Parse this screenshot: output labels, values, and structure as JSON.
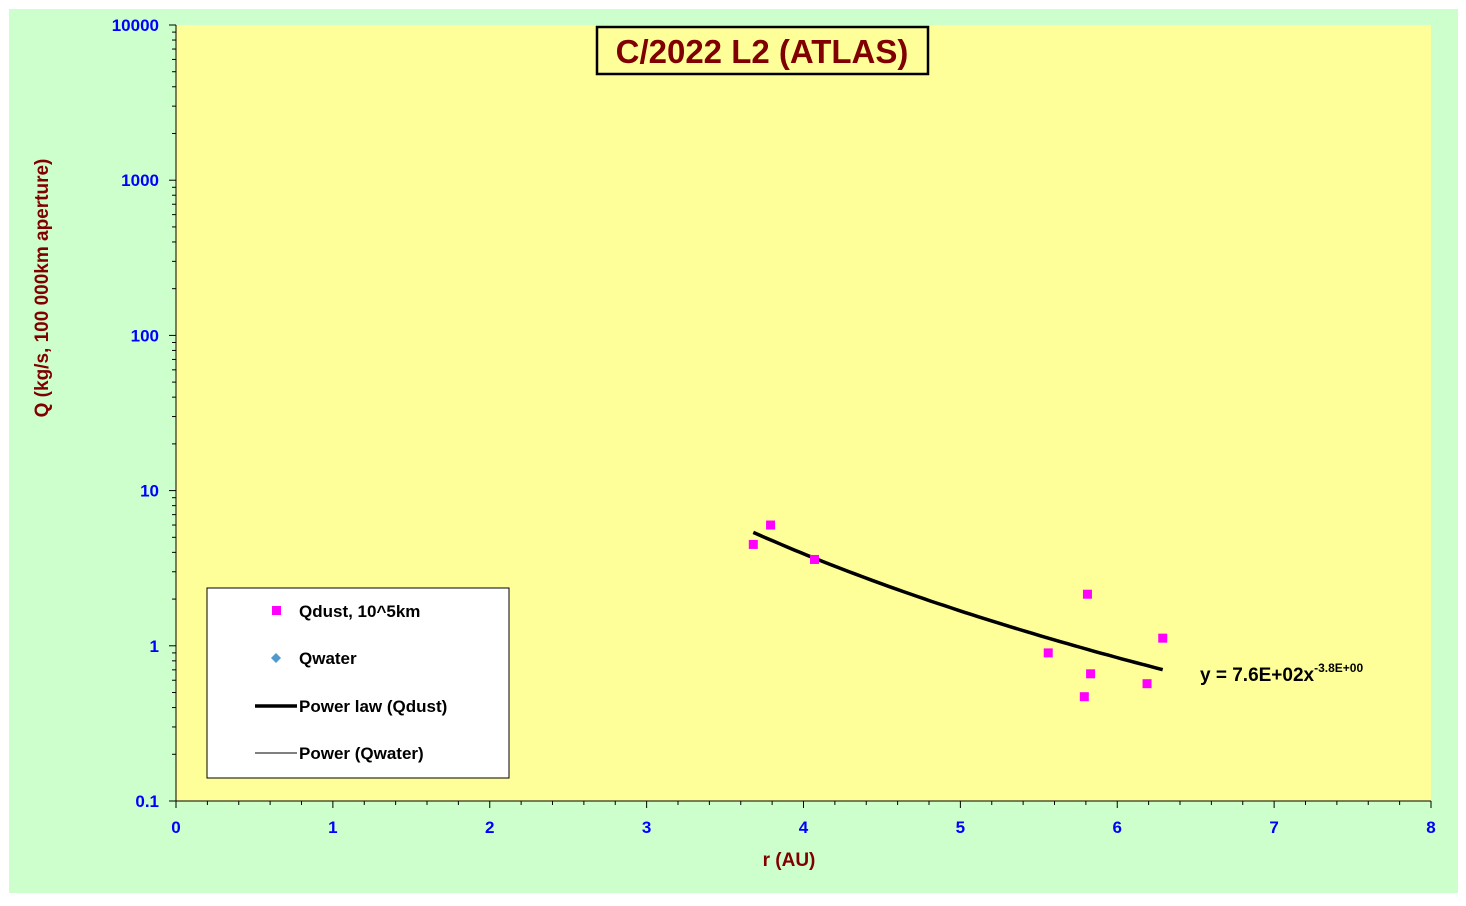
{
  "chart_data": {
    "type": "scatter",
    "title": "C/2022 L2 (ATLAS)",
    "xlabel": "r (AU)",
    "ylabel": "Q (kg/s, 100 000km aperture)",
    "xlim": [
      0,
      8
    ],
    "ylim": [
      0.1,
      10000
    ],
    "y_scale": "log",
    "x_ticks": [
      "0",
      "1",
      "2",
      "3",
      "4",
      "5",
      "6",
      "7",
      "8"
    ],
    "y_ticks": [
      "0.1",
      "1",
      "10",
      "100",
      "1000",
      "10000"
    ],
    "series": [
      {
        "name": "Qdust, 10^5km",
        "marker": "square",
        "color": "#ff00ff",
        "points": [
          {
            "x": 3.68,
            "y": 4.5
          },
          {
            "x": 3.79,
            "y": 6.0
          },
          {
            "x": 4.07,
            "y": 3.6
          },
          {
            "x": 5.56,
            "y": 0.9
          },
          {
            "x": 5.79,
            "y": 0.47
          },
          {
            "x": 5.81,
            "y": 2.15
          },
          {
            "x": 5.83,
            "y": 0.66
          },
          {
            "x": 6.19,
            "y": 0.57
          },
          {
            "x": 6.29,
            "y": 1.12
          }
        ]
      },
      {
        "name": "Qwater",
        "marker": "diamond",
        "color": "#4f9bd0",
        "points": []
      }
    ],
    "trendlines": [
      {
        "name": "Power law (Qdust)",
        "style": "thick",
        "color": "#000000",
        "coef": 760,
        "exp": -3.8,
        "x_range": [
          3.68,
          6.29
        ]
      },
      {
        "name": "Power (Qwater)",
        "style": "thin",
        "color": "#000000"
      }
    ],
    "equation": {
      "prefix": "y = 7.6E+02x",
      "exponent": "-3.8E+00"
    },
    "legend_position": "bottom-left",
    "colors": {
      "background": "#ccffcc",
      "plot_area": "#ffff99",
      "axis_text": "#0000ff",
      "title_text": "#800000",
      "axis_label_text": "#800000"
    }
  }
}
